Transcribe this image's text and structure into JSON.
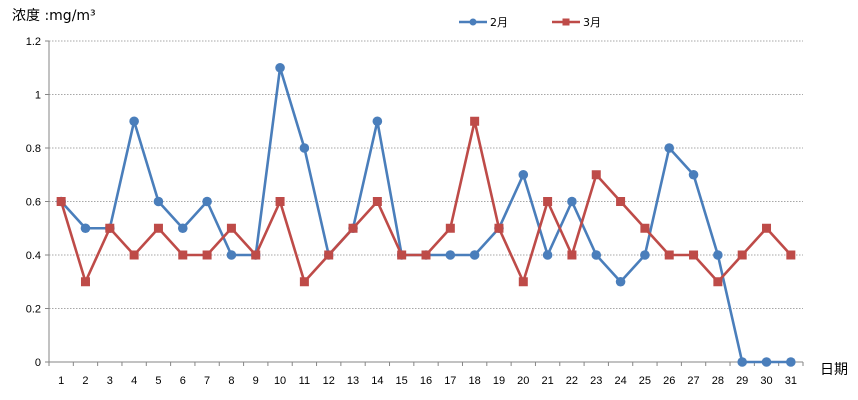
{
  "chart_data": {
    "type": "line",
    "title": "",
    "ylabel": "浓度 :mg/m³",
    "xlabel": "日期",
    "ylim": [
      0,
      1.2
    ],
    "yticks": [
      "0",
      "0.2",
      "0.4",
      "0.6",
      "0.8",
      "1",
      "1.2"
    ],
    "categories": [
      "1",
      "2",
      "3",
      "4",
      "5",
      "6",
      "7",
      "8",
      "9",
      "10",
      "11",
      "12",
      "13",
      "14",
      "15",
      "16",
      "17",
      "18",
      "19",
      "20",
      "21",
      "22",
      "23",
      "24",
      "25",
      "26",
      "27",
      "28",
      "29",
      "30",
      "31"
    ],
    "grid": true,
    "legend_position": "top",
    "series": [
      {
        "name": "2月",
        "color": "#4A7EBB",
        "marker": "circle",
        "values": [
          0.6,
          0.5,
          0.5,
          0.9,
          0.6,
          0.5,
          0.6,
          0.4,
          0.4,
          1.1,
          0.8,
          0.4,
          0.5,
          0.9,
          0.4,
          0.4,
          0.4,
          0.4,
          0.5,
          0.7,
          0.4,
          0.6,
          0.4,
          0.3,
          0.4,
          0.8,
          0.7,
          0.4,
          0,
          0,
          0
        ]
      },
      {
        "name": "3月",
        "color": "#BE4B48",
        "marker": "square",
        "values": [
          0.6,
          0.3,
          0.5,
          0.4,
          0.5,
          0.4,
          0.4,
          0.5,
          0.4,
          0.6,
          0.3,
          0.4,
          0.5,
          0.6,
          0.4,
          0.4,
          0.5,
          0.9,
          0.5,
          0.3,
          0.6,
          0.4,
          0.7,
          0.6,
          0.5,
          0.4,
          0.4,
          0.3,
          0.4,
          0.5,
          0.4
        ]
      }
    ]
  }
}
